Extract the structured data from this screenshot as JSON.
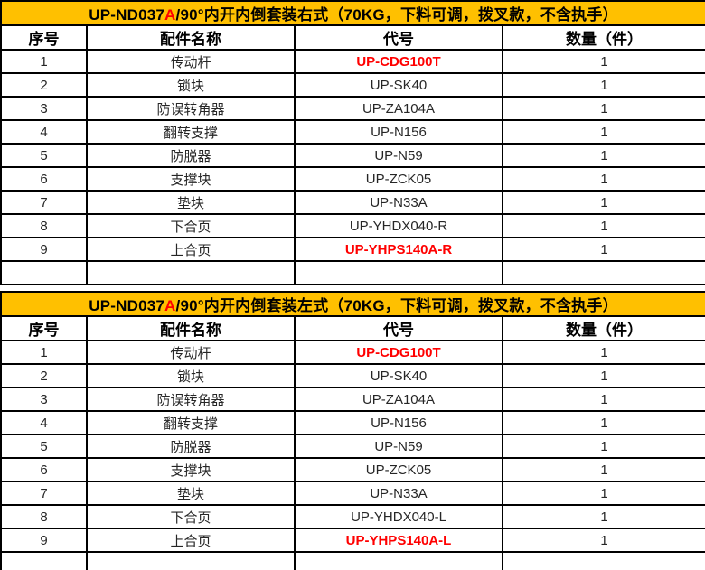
{
  "colors": {
    "title_bg": "#FFC000",
    "highlight_red": "#FF0000",
    "border": "#000000",
    "text": "#262626"
  },
  "columns": [
    "序号",
    "配件名称",
    "代号",
    "数量（件）"
  ],
  "tables": [
    {
      "title_prefix": "UP-ND037",
      "title_red": "A",
      "title_suffix": "/90°内开内倒套装右式（70KG，下料可调，拨叉款，不含执手）",
      "rows": [
        {
          "no": "1",
          "name": "传动杆",
          "code": "UP-CDG100T",
          "qty": "1",
          "code_red": true
        },
        {
          "no": "2",
          "name": "锁块",
          "code": "UP-SK40",
          "qty": "1",
          "code_red": false
        },
        {
          "no": "3",
          "name": "防误转角器",
          "code": "UP-ZA104A",
          "qty": "1",
          "code_red": false
        },
        {
          "no": "4",
          "name": "翻转支撑",
          "code": "UP-N156",
          "qty": "1",
          "code_red": false
        },
        {
          "no": "5",
          "name": "防脱器",
          "code": "UP-N59",
          "qty": "1",
          "code_red": false
        },
        {
          "no": "6",
          "name": "支撑块",
          "code": "UP-ZCK05",
          "qty": "1",
          "code_red": false
        },
        {
          "no": "7",
          "name": "垫块",
          "code": "UP-N33A",
          "qty": "1",
          "code_red": false
        },
        {
          "no": "8",
          "name": "下合页",
          "code": "UP-YHDX040-R",
          "qty": "1",
          "code_red": false
        },
        {
          "no": "9",
          "name": "上合页",
          "code": "UP-YHPS140A-R",
          "qty": "1",
          "code_red": true
        }
      ]
    },
    {
      "title_prefix": "UP-ND037",
      "title_red": "A",
      "title_suffix": "/90°内开内倒套装左式（70KG，下料可调，拨叉款，不含执手）",
      "rows": [
        {
          "no": "1",
          "name": "传动杆",
          "code": "UP-CDG100T",
          "qty": "1",
          "code_red": true
        },
        {
          "no": "2",
          "name": "锁块",
          "code": "UP-SK40",
          "qty": "1",
          "code_red": false
        },
        {
          "no": "3",
          "name": "防误转角器",
          "code": "UP-ZA104A",
          "qty": "1",
          "code_red": false
        },
        {
          "no": "4",
          "name": "翻转支撑",
          "code": "UP-N156",
          "qty": "1",
          "code_red": false
        },
        {
          "no": "5",
          "name": "防脱器",
          "code": "UP-N59",
          "qty": "1",
          "code_red": false
        },
        {
          "no": "6",
          "name": "支撑块",
          "code": "UP-ZCK05",
          "qty": "1",
          "code_red": false
        },
        {
          "no": "7",
          "name": "垫块",
          "code": "UP-N33A",
          "qty": "1",
          "code_red": false
        },
        {
          "no": "8",
          "name": "下合页",
          "code": "UP-YHDX040-L",
          "qty": "1",
          "code_red": false
        },
        {
          "no": "9",
          "name": "上合页",
          "code": "UP-YHPS140A-L",
          "qty": "1",
          "code_red": true
        }
      ]
    }
  ]
}
